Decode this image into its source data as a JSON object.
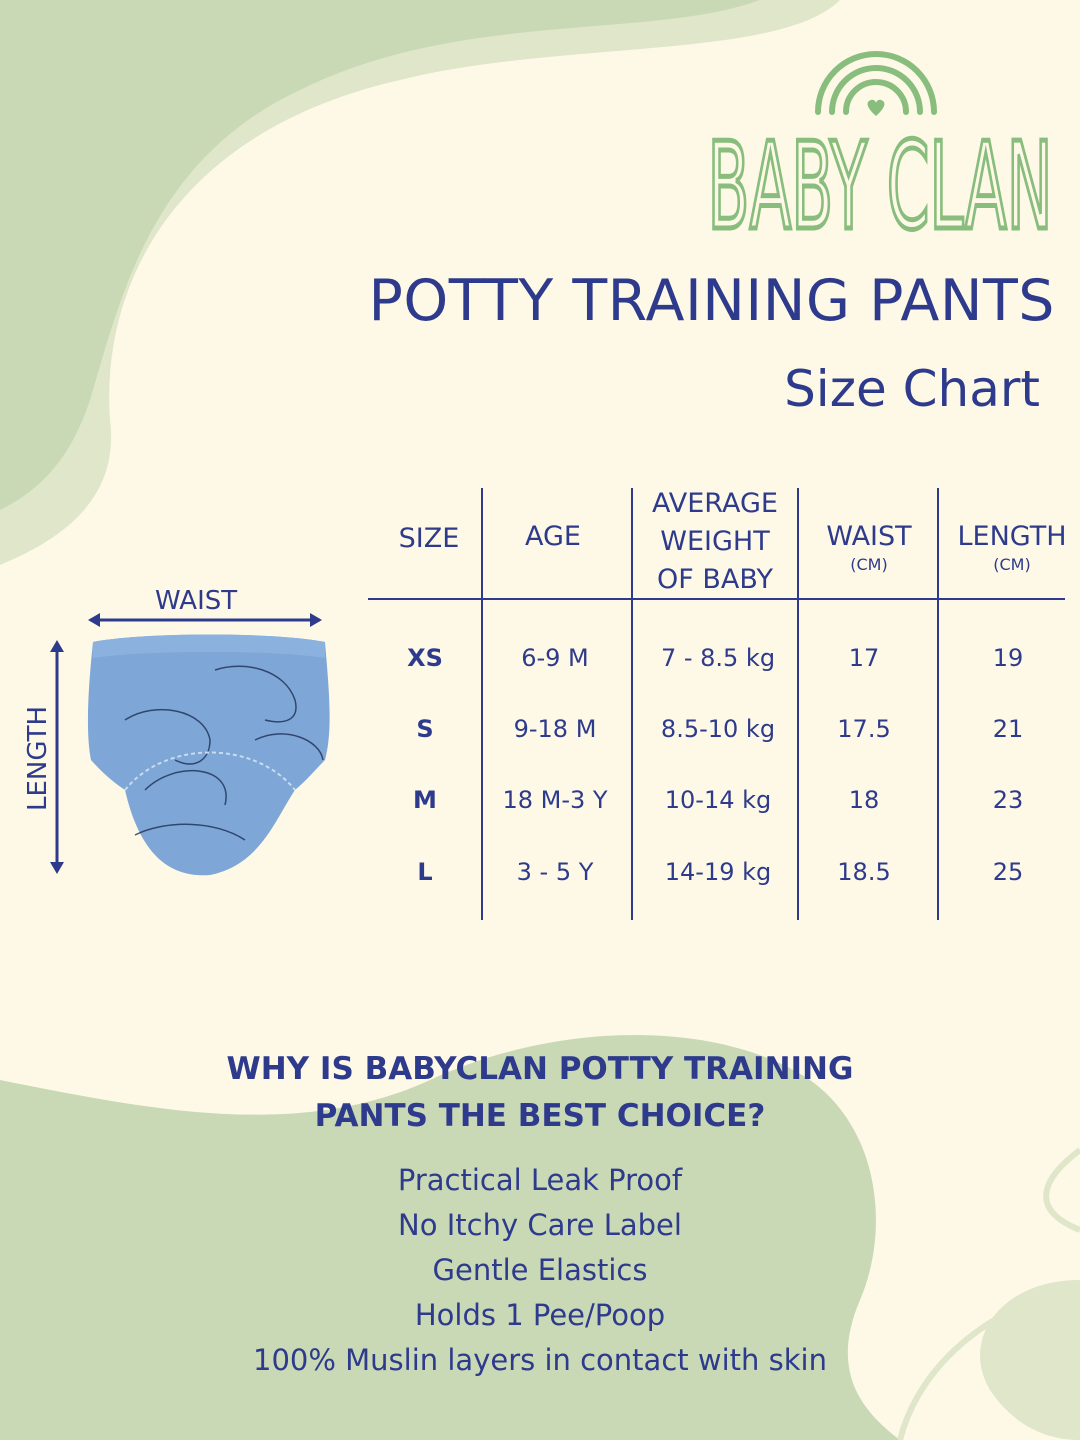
{
  "brand": {
    "logo_text": "BABY CLAN",
    "color": "#88bd7e"
  },
  "header": {
    "title": "POTTY TRAINING PANTS",
    "subtitle": "Size Chart"
  },
  "diagram": {
    "waist_label": "WAIST",
    "length_label": "LENGTH"
  },
  "table": {
    "headers": [
      {
        "label": "SIZE"
      },
      {
        "label": "AGE"
      },
      {
        "label": "AVERAGE",
        "label2": "WEIGHT",
        "label3": "OF BABY"
      },
      {
        "label": "WAIST",
        "unit": "(CM)"
      },
      {
        "label": "LENGTH",
        "unit": "(CM)"
      }
    ],
    "rows": [
      {
        "size": "XS",
        "age": "6-9 M",
        "weight": "7 - 8.5 kg",
        "waist": "17",
        "length": "19"
      },
      {
        "size": "S",
        "age": "9-18 M",
        "weight": "8.5-10 kg",
        "waist": "17.5",
        "length": "21"
      },
      {
        "size": "M",
        "age": "18 M-3 Y",
        "weight": "10-14 kg",
        "waist": "18",
        "length": "23"
      },
      {
        "size": "L",
        "age": "3 - 5 Y",
        "weight": "14-19 kg",
        "waist": "18.5",
        "length": "25"
      }
    ]
  },
  "why": {
    "line1": "WHY IS BABYCLAN POTTY TRAINING",
    "line2": "PANTS THE BEST CHOICE?",
    "features": [
      "Practical Leak Proof",
      "No Itchy Care Label",
      "Gentle Elastics",
      "Holds 1 Pee/Poop",
      "100% Muslin layers in contact with skin"
    ]
  },
  "colors": {
    "text": "#2e3a8c",
    "background": "#fdf9e6",
    "green": "#c9d9b5",
    "green_light": "#dfe6c9",
    "pants_blue": "#7ea6d6"
  }
}
